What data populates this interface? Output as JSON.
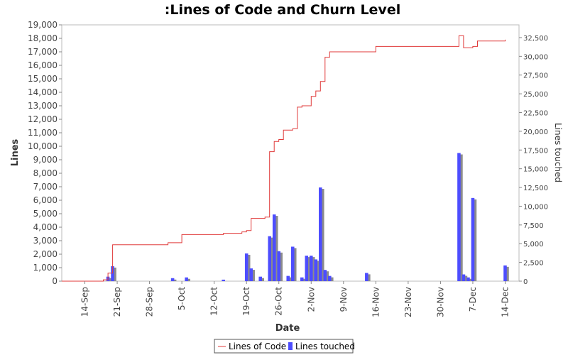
{
  "chart_data": {
    "type": "bar",
    "title": ":Lines of Code and Churn Level",
    "xlabel": "Date",
    "ylabel": "Lines",
    "y2label": "Lines touched",
    "ylim": [
      0,
      19000
    ],
    "y2lim": [
      0,
      34200
    ],
    "xlim": [
      "2008-09-09",
      "2008-12-17"
    ],
    "x_ticks": [
      {
        "date": "2008-09-14",
        "label": "14-Sep"
      },
      {
        "date": "2008-09-21",
        "label": "21-Sep"
      },
      {
        "date": "2008-09-28",
        "label": "28-Sep"
      },
      {
        "date": "2008-10-05",
        "label": "5-Oct"
      },
      {
        "date": "2008-10-12",
        "label": "12-Oct"
      },
      {
        "date": "2008-10-19",
        "label": "19-Oct"
      },
      {
        "date": "2008-10-26",
        "label": "26-Oct"
      },
      {
        "date": "2008-11-02",
        "label": "2-Nov"
      },
      {
        "date": "2008-11-09",
        "label": "9-Nov"
      },
      {
        "date": "2008-11-16",
        "label": "16-Nov"
      },
      {
        "date": "2008-11-23",
        "label": "23-Nov"
      },
      {
        "date": "2008-11-30",
        "label": "30-Nov"
      },
      {
        "date": "2008-12-07",
        "label": "7-Dec"
      },
      {
        "date": "2008-12-14",
        "label": "14-Dec"
      }
    ],
    "y_ticks": [
      {
        "value": 0,
        "label": "0"
      },
      {
        "value": 1000,
        "label": "1,000"
      },
      {
        "value": 2000,
        "label": "2,000"
      },
      {
        "value": 3000,
        "label": "3,000"
      },
      {
        "value": 4000,
        "label": "4,000"
      },
      {
        "value": 5000,
        "label": "5,000"
      },
      {
        "value": 6000,
        "label": "6,000"
      },
      {
        "value": 7000,
        "label": "7,000"
      },
      {
        "value": 8000,
        "label": "8,000"
      },
      {
        "value": 9000,
        "label": "9,000"
      },
      {
        "value": 10000,
        "label": "10,000"
      },
      {
        "value": 11000,
        "label": "11,000"
      },
      {
        "value": 12000,
        "label": "12,000"
      },
      {
        "value": 13000,
        "label": "13,000"
      },
      {
        "value": 14000,
        "label": "14,000"
      },
      {
        "value": 15000,
        "label": "15,000"
      },
      {
        "value": 16000,
        "label": "16,000"
      },
      {
        "value": 17000,
        "label": "17,000"
      },
      {
        "value": 18000,
        "label": "18,000"
      },
      {
        "value": 19000,
        "label": "19,000"
      }
    ],
    "y2_ticks": [
      {
        "value": 0,
        "label": "0"
      },
      {
        "value": 2500,
        "label": "2,500"
      },
      {
        "value": 5000,
        "label": "5,000"
      },
      {
        "value": 7500,
        "label": "7,500"
      },
      {
        "value": 10000,
        "label": "10,000"
      },
      {
        "value": 12500,
        "label": "12,500"
      },
      {
        "value": 15000,
        "label": "15,000"
      },
      {
        "value": 17500,
        "label": "17,500"
      },
      {
        "value": 20000,
        "label": "20,000"
      },
      {
        "value": 22500,
        "label": "22,500"
      },
      {
        "value": 25000,
        "label": "25,000"
      },
      {
        "value": 27500,
        "label": "27,500"
      },
      {
        "value": 30000,
        "label": "30,000"
      },
      {
        "value": 32500,
        "label": "32,500"
      }
    ],
    "legend": {
      "placement": "bottom-center",
      "items": [
        {
          "label": "Lines of Code",
          "kind": "line",
          "color": "#e03a3a"
        },
        {
          "label": "Lines touched",
          "kind": "bar",
          "color": "#4d4dff"
        }
      ]
    },
    "colors": {
      "loc": "#e03a3a",
      "bar_primary": "#4d4dff",
      "bar_shadow": "#8c8c8c"
    },
    "grid": false,
    "series": [
      {
        "name": "Lines of Code",
        "kind": "step-line",
        "axis": "left",
        "points": [
          {
            "date": "2008-09-09",
            "value": 0
          },
          {
            "date": "2008-09-17",
            "value": 0
          },
          {
            "date": "2008-09-18",
            "value": 100
          },
          {
            "date": "2008-09-19",
            "value": 600
          },
          {
            "date": "2008-09-20",
            "value": 2700
          },
          {
            "date": "2008-10-01",
            "value": 2700
          },
          {
            "date": "2008-10-02",
            "value": 2850
          },
          {
            "date": "2008-10-05",
            "value": 2850
          },
          {
            "date": "2008-10-05",
            "value": 3450
          },
          {
            "date": "2008-10-13",
            "value": 3450
          },
          {
            "date": "2008-10-14",
            "value": 3550
          },
          {
            "date": "2008-10-17",
            "value": 3550
          },
          {
            "date": "2008-10-18",
            "value": 3650
          },
          {
            "date": "2008-10-19",
            "value": 3750
          },
          {
            "date": "2008-10-20",
            "value": 4650
          },
          {
            "date": "2008-10-22",
            "value": 4650
          },
          {
            "date": "2008-10-23",
            "value": 4750
          },
          {
            "date": "2008-10-24",
            "value": 9200
          },
          {
            "date": "2008-10-24",
            "value": 9600
          },
          {
            "date": "2008-10-25",
            "value": 10350
          },
          {
            "date": "2008-10-26",
            "value": 10500
          },
          {
            "date": "2008-10-27",
            "value": 11200
          },
          {
            "date": "2008-10-29",
            "value": 11300
          },
          {
            "date": "2008-10-30",
            "value": 12900
          },
          {
            "date": "2008-10-31",
            "value": 13000
          },
          {
            "date": "2008-11-01",
            "value": 13000
          },
          {
            "date": "2008-11-02",
            "value": 13700
          },
          {
            "date": "2008-11-03",
            "value": 14100
          },
          {
            "date": "2008-11-04",
            "value": 14800
          },
          {
            "date": "2008-11-05",
            "value": 16000
          },
          {
            "date": "2008-11-05",
            "value": 16600
          },
          {
            "date": "2008-11-06",
            "value": 17000
          },
          {
            "date": "2008-11-15",
            "value": 17000
          },
          {
            "date": "2008-11-16",
            "value": 17400
          },
          {
            "date": "2008-12-04",
            "value": 17400
          },
          {
            "date": "2008-12-04",
            "value": 18200
          },
          {
            "date": "2008-12-05",
            "value": 17300
          },
          {
            "date": "2008-12-06",
            "value": 17300
          },
          {
            "date": "2008-12-07",
            "value": 17400
          },
          {
            "date": "2008-12-08",
            "value": 17800
          },
          {
            "date": "2008-12-13",
            "value": 17800
          },
          {
            "date": "2008-12-14",
            "value": 17900
          }
        ]
      },
      {
        "name": "Lines touched",
        "kind": "bar",
        "axis": "right",
        "points": [
          {
            "date": "2008-09-19",
            "value": 600
          },
          {
            "date": "2008-09-20",
            "value": 2000
          },
          {
            "date": "2008-10-03",
            "value": 400
          },
          {
            "date": "2008-10-06",
            "value": 500
          },
          {
            "date": "2008-10-14",
            "value": 200
          },
          {
            "date": "2008-10-19",
            "value": 3700
          },
          {
            "date": "2008-10-20",
            "value": 1700
          },
          {
            "date": "2008-10-22",
            "value": 600
          },
          {
            "date": "2008-10-24",
            "value": 6000
          },
          {
            "date": "2008-10-25",
            "value": 8900
          },
          {
            "date": "2008-10-26",
            "value": 4000
          },
          {
            "date": "2008-10-28",
            "value": 700
          },
          {
            "date": "2008-10-29",
            "value": 4600
          },
          {
            "date": "2008-10-31",
            "value": 500
          },
          {
            "date": "2008-11-01",
            "value": 3400
          },
          {
            "date": "2008-11-02",
            "value": 3400
          },
          {
            "date": "2008-11-03",
            "value": 2900
          },
          {
            "date": "2008-11-04",
            "value": 12500
          },
          {
            "date": "2008-11-05",
            "value": 1500
          },
          {
            "date": "2008-11-06",
            "value": 700
          },
          {
            "date": "2008-11-14",
            "value": 1100
          },
          {
            "date": "2008-12-04",
            "value": 17100
          },
          {
            "date": "2008-12-05",
            "value": 900
          },
          {
            "date": "2008-12-06",
            "value": 500
          },
          {
            "date": "2008-12-07",
            "value": 11100
          },
          {
            "date": "2008-12-14",
            "value": 2100
          }
        ]
      }
    ]
  }
}
